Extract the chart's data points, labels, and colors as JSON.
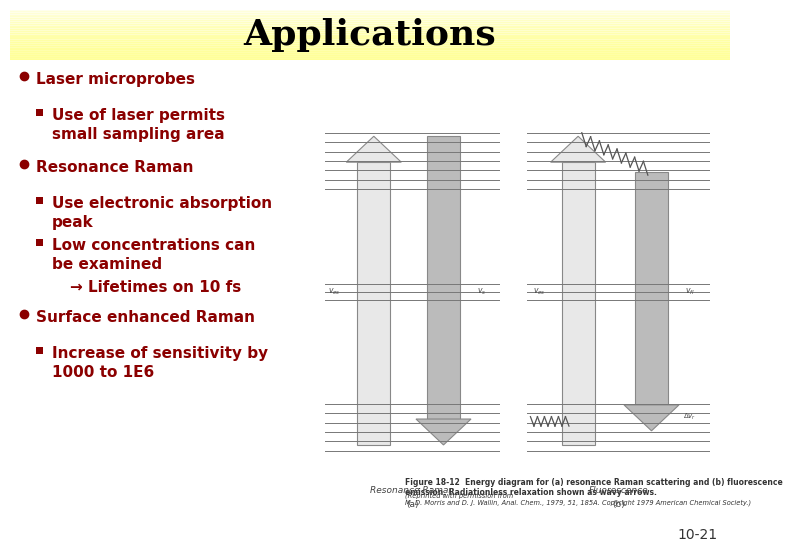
{
  "title": "Applications",
  "title_fontsize": 26,
  "title_fontweight": "bold",
  "title_color": "#000000",
  "background_color": "#ffffff",
  "header_bg_top": "#ffff99",
  "header_bg_bottom": "#fffff0",
  "bullet_color": "#8b0000",
  "bullet_points": [
    {
      "level": 0,
      "text": "Laser microprobes",
      "bold": true
    },
    {
      "level": 1,
      "text": "Use of laser permits\nsmall sampling area",
      "bold": true
    },
    {
      "level": 0,
      "text": "Resonance Raman",
      "bold": true
    },
    {
      "level": 1,
      "text": "Use electronic absorption\npeak",
      "bold": true
    },
    {
      "level": 1,
      "text": "Low concentrations can\nbe examined",
      "bold": true
    },
    {
      "level": 2,
      "text": "→ Lifetimes on 10 fs",
      "bold": true
    },
    {
      "level": 0,
      "text": "Surface enhanced Raman",
      "bold": true
    },
    {
      "level": 1,
      "text": "Increase of sensitivity by\n1000 to 1E6",
      "bold": true
    }
  ],
  "slide_number": "10-21",
  "fig_caption": "Figure 18-12  Energy diagram for (a) resonance Raman scattering and (b) fluorescence\nemission. Radiationless relaxation shown as wavy arrows.",
  "fig_caption2": "(Reprinted with permission from\nM. D. Morris and D. J. Wallin, Anal. Chem., 1979, 51, 185A. Copyright 1979 American Chemical Society.)"
}
